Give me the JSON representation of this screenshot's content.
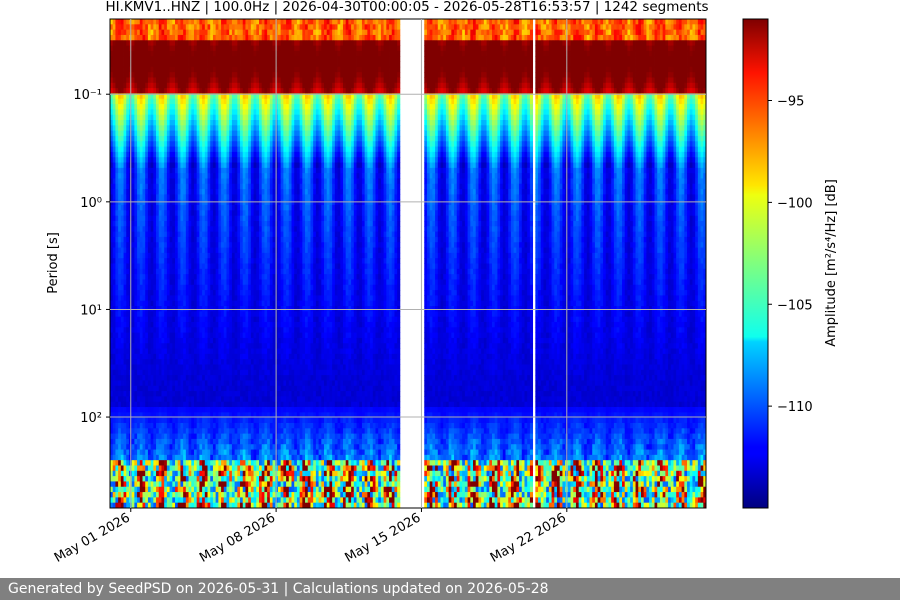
{
  "chart_data": {
    "type": "heatmap",
    "title": "HI.KMV1..HNZ | 100.0Hz | 2026-04-30T00:00:05 - 2026-05-28T16:53:57 | 1242 segments",
    "ylabel": "Period [s]",
    "yscale": "log",
    "ylim_seconds": [
      0.02,
      700
    ],
    "y_ticks": [
      {
        "value": 0.1,
        "label": "10⁻¹"
      },
      {
        "value": 1,
        "label": "10⁰"
      },
      {
        "value": 10,
        "label": "10¹"
      },
      {
        "value": 100,
        "label": "10²"
      }
    ],
    "x_range": [
      "2026-04-30T00:00:05",
      "2026-05-28T16:53:57"
    ],
    "x_ticks": [
      "May 01 2026",
      "May 08 2026",
      "May 15 2026",
      "May 22 2026"
    ],
    "x_tick_dates": [
      "2026-05-01",
      "2026-05-08",
      "2026-05-15",
      "2026-05-22"
    ],
    "grid": true,
    "data_gaps": [
      {
        "start": "2026-05-13T09:00",
        "end": "2026-05-13T12:00"
      },
      {
        "start": "2026-05-14T00:00",
        "end": "2026-05-15T03:00"
      },
      {
        "start": "2026-05-20T10:00",
        "end": "2026-05-20T13:00"
      }
    ],
    "colorbar": {
      "label": "Amplitude [m²/s⁴/Hz] [dB]",
      "colormap": "jet",
      "vmin": -115,
      "vmax": -91,
      "ticks": [
        -95,
        -100,
        -105,
        -110
      ]
    }
  },
  "footer_text": "Generated by SeedPSD on 2026-05-31 | Calculations updated on 2026-05-28"
}
